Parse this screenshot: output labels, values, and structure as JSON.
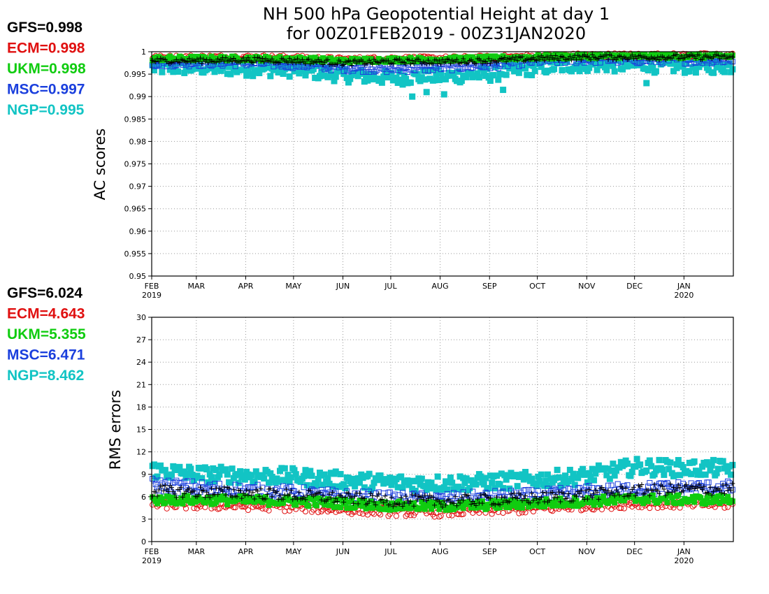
{
  "figure": {
    "title_line1": "NH 500 hPa Geopotential Height at day 1",
    "title_line2": "for 00Z01FEB2019 - 00Z31JAN2020"
  },
  "colors": {
    "GFS": "#000000",
    "ECM": "#e01010",
    "UKM": "#10cc10",
    "MSC": "#1a3fdd",
    "NGP": "#12c4c4"
  },
  "months": [
    "FEB",
    "MAR",
    "APR",
    "MAY",
    "JUN",
    "JUL",
    "AUG",
    "SEP",
    "OCT",
    "NOV",
    "DEC",
    "JAN"
  ],
  "year_labels": [
    {
      "month_index": 0,
      "text": "2019"
    },
    {
      "month_index": 11,
      "text": "2020"
    }
  ],
  "chart_data": [
    {
      "type": "scatter",
      "ylabel": "AC scores",
      "ylim": [
        0.95,
        1.0
      ],
      "yticks": [
        "0.95",
        "0.955",
        "0.96",
        "0.965",
        "0.97",
        "0.975",
        "0.98",
        "0.985",
        "0.99",
        "0.995",
        "1"
      ],
      "x_range_days": [
        0,
        365
      ],
      "grid": true,
      "summary": [
        {
          "model": "GFS",
          "text": "GFS=0.998"
        },
        {
          "model": "ECM",
          "text": "ECM=0.998"
        },
        {
          "model": "UKM",
          "text": "UKM=0.998"
        },
        {
          "model": "MSC",
          "text": "MSC=0.997"
        },
        {
          "model": "NGP",
          "text": "NGP=0.995"
        }
      ],
      "series_profile": [
        {
          "model": "GFS",
          "marker": "plus",
          "level_by_month": [
            0.998,
            0.998,
            0.9982,
            0.998,
            0.9975,
            0.9978,
            0.9978,
            0.998,
            0.9985,
            0.9988,
            0.9988,
            0.9988
          ],
          "spread": 0.0006
        },
        {
          "model": "ECM",
          "marker": "circle",
          "level_by_month": [
            0.9987,
            0.9988,
            0.9988,
            0.9987,
            0.9983,
            0.9985,
            0.9985,
            0.9987,
            0.999,
            0.9992,
            0.9992,
            0.9992
          ],
          "spread": 0.0005
        },
        {
          "model": "UKM",
          "marker": "filled-square",
          "level_by_month": [
            0.9985,
            0.9985,
            0.9985,
            0.9984,
            0.998,
            0.9982,
            0.9983,
            0.9985,
            0.9988,
            0.999,
            0.999,
            0.999
          ],
          "spread": 0.0005
        },
        {
          "model": "MSC",
          "marker": "open-square",
          "level_by_month": [
            0.9975,
            0.9976,
            0.9976,
            0.9972,
            0.9965,
            0.9962,
            0.9966,
            0.997,
            0.998,
            0.9983,
            0.9982,
            0.9982
          ],
          "spread": 0.0009
        },
        {
          "model": "NGP",
          "marker": "filled-square",
          "level_by_month": [
            0.9965,
            0.9965,
            0.9962,
            0.996,
            0.9948,
            0.9942,
            0.9945,
            0.995,
            0.9965,
            0.9972,
            0.997,
            0.9968
          ],
          "spread": 0.0016,
          "outliers": [
            {
              "day": 163,
              "value": 0.99
            },
            {
              "day": 172,
              "value": 0.991
            },
            {
              "day": 183,
              "value": 0.9905
            },
            {
              "day": 220,
              "value": 0.9915
            },
            {
              "day": 310,
              "value": 0.993
            }
          ]
        }
      ]
    },
    {
      "type": "scatter",
      "ylabel": "RMS errors",
      "ylim": [
        0,
        30
      ],
      "yticks": [
        "0",
        "3",
        "6",
        "9",
        "12",
        "15",
        "18",
        "21",
        "24",
        "27",
        "30"
      ],
      "x_range_days": [
        0,
        365
      ],
      "grid": true,
      "summary": [
        {
          "model": "GFS",
          "text": "GFS=6.024"
        },
        {
          "model": "ECM",
          "text": "ECM=4.643"
        },
        {
          "model": "UKM",
          "text": "UKM=5.355"
        },
        {
          "model": "MSC",
          "text": "MSC=6.471"
        },
        {
          "model": "NGP",
          "text": "NGP=8.462"
        }
      ],
      "series_profile": [
        {
          "model": "GFS",
          "marker": "plus",
          "level_by_month": [
            6.8,
            6.6,
            6.5,
            6.2,
            5.8,
            5.5,
            5.4,
            5.6,
            5.8,
            6.3,
            6.8,
            7.0
          ],
          "spread": 0.8
        },
        {
          "model": "ECM",
          "marker": "circle",
          "level_by_month": [
            5.0,
            4.9,
            4.8,
            4.6,
            4.3,
            4.0,
            3.9,
            4.2,
            4.4,
            4.8,
            5.1,
            5.0
          ],
          "spread": 0.6
        },
        {
          "model": "UKM",
          "marker": "filled-square",
          "level_by_month": [
            5.6,
            5.6,
            5.5,
            5.4,
            5.1,
            4.8,
            4.7,
            4.9,
            5.1,
            5.4,
            5.7,
            5.6
          ],
          "spread": 0.6
        },
        {
          "model": "MSC",
          "marker": "open-square",
          "level_by_month": [
            7.6,
            7.2,
            6.8,
            6.5,
            6.0,
            5.7,
            5.6,
            5.9,
            6.1,
            6.6,
            7.0,
            7.2
          ],
          "spread": 0.9
        },
        {
          "model": "NGP",
          "marker": "filled-square",
          "level_by_month": [
            9.6,
            9.0,
            8.9,
            8.7,
            8.2,
            7.9,
            7.8,
            8.0,
            8.3,
            8.8,
            10.0,
            9.8
          ],
          "spread": 1.1
        }
      ]
    }
  ]
}
